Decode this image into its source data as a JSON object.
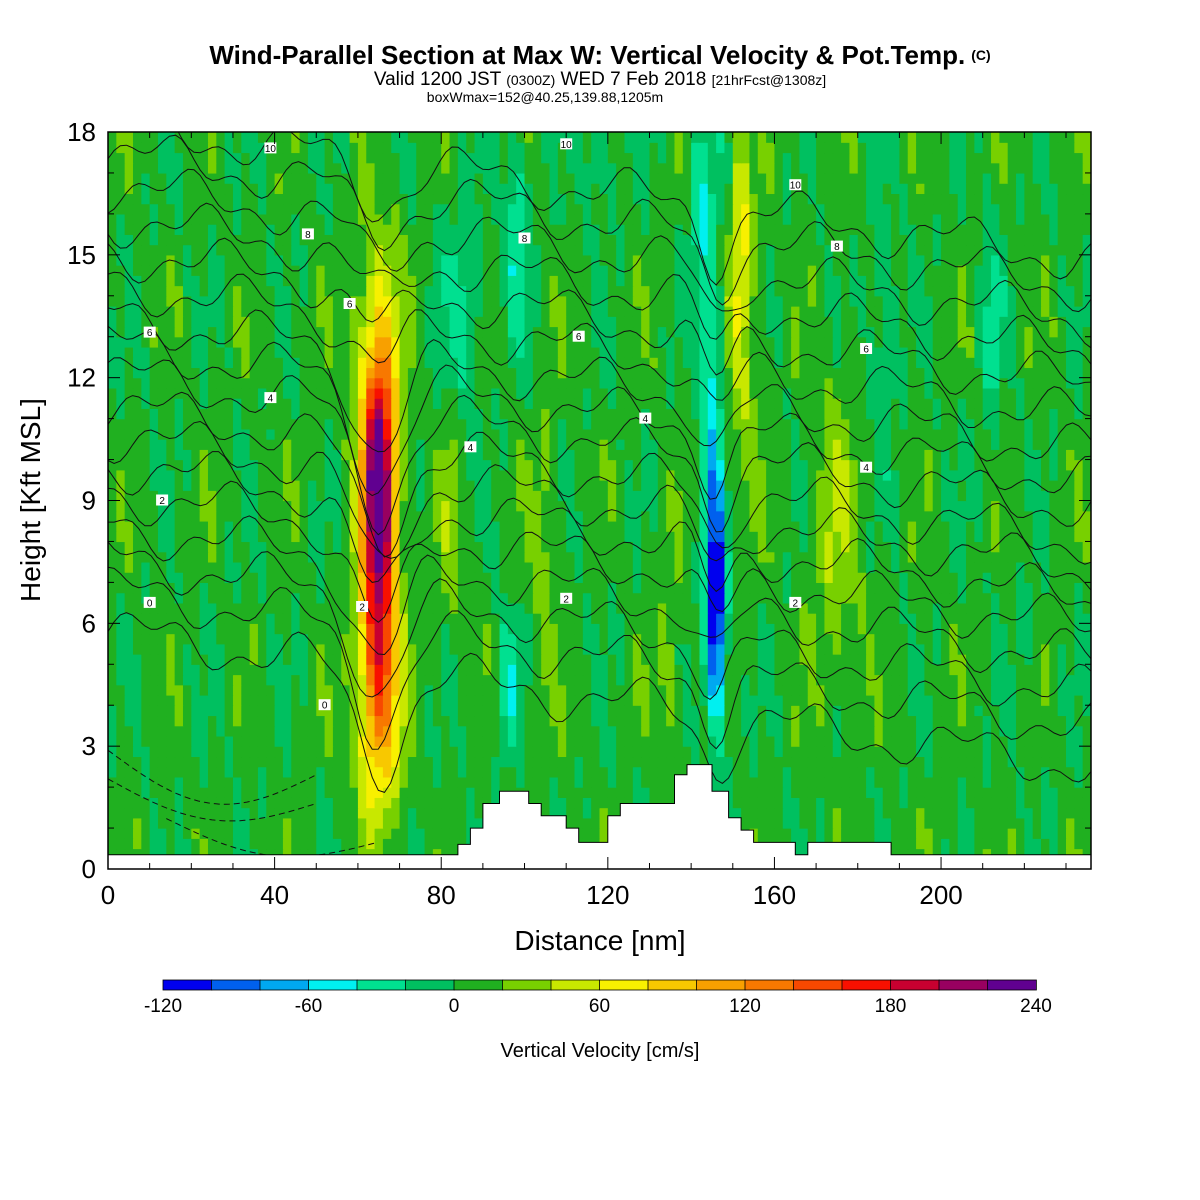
{
  "header": {
    "title": "Wind-Parallel Section at Max W: Vertical Velocity & Pot.Temp.",
    "title_mark": "(C)",
    "valid_prefix": "Valid 1200 JST",
    "valid_utc": "(0300Z)",
    "valid_date": "WED 7 Feb 2018",
    "valid_fcst": "[21hrFcst@1308z]",
    "box_info": "boxWmax=152@40.25,139.88,1205m"
  },
  "chart_data": {
    "type": "heatmap",
    "xlabel": "Distance [nm]",
    "ylabel": "Height [Kft MSL]",
    "xlim": [
      0,
      236
    ],
    "ylim": [
      0,
      18
    ],
    "x_ticks": [
      "0",
      "40",
      "80",
      "120",
      "160",
      "200"
    ],
    "y_ticks": [
      "0",
      "3",
      "6",
      "9",
      "12",
      "15",
      "18"
    ],
    "field": "Vertical Velocity [cm/s]",
    "colorbar": {
      "label": "Vertical Velocity [cm/s]",
      "tick_labels": [
        "-120",
        "-60",
        "0",
        "60",
        "120",
        "180",
        "240"
      ],
      "levels": [
        -120,
        -100,
        -80,
        -60,
        -40,
        -20,
        0,
        20,
        40,
        60,
        80,
        100,
        120,
        140,
        160,
        180,
        200,
        220,
        240
      ],
      "colors": [
        "#0000ee",
        "#0060ee",
        "#00a8f0",
        "#00f0f0",
        "#00e090",
        "#00c060",
        "#20b020",
        "#78d000",
        "#c8e800",
        "#f8f000",
        "#f8c800",
        "#f8a000",
        "#f87800",
        "#f84800",
        "#f81000",
        "#c80030",
        "#980060",
        "#600090"
      ]
    },
    "features": [
      {
        "kind": "updraft",
        "x": 65,
        "peak_z": 9.0,
        "peak_w": 240
      },
      {
        "kind": "updraft",
        "x": 65,
        "peak_z": 5.0,
        "peak_w": 170
      },
      {
        "kind": "downdraft",
        "x": 146,
        "peak_z": 6.0,
        "peak_w": -120
      },
      {
        "kind": "weak_updraft",
        "x": 152,
        "peak_z": 15.5,
        "peak_w": 50
      }
    ],
    "contour_field": "Potential temperature",
    "contour_labels": [
      {
        "value": "10",
        "x": 39,
        "z": 17.6
      },
      {
        "value": "10",
        "x": 110,
        "z": 17.7
      },
      {
        "value": "10",
        "x": 165,
        "z": 16.7
      },
      {
        "value": "8",
        "x": 48,
        "z": 15.5
      },
      {
        "value": "8",
        "x": 100,
        "z": 15.4
      },
      {
        "value": "8",
        "x": 175,
        "z": 15.2
      },
      {
        "value": "6",
        "x": 10,
        "z": 13.1
      },
      {
        "value": "6",
        "x": 58,
        "z": 13.8
      },
      {
        "value": "6",
        "x": 113,
        "z": 13.0
      },
      {
        "value": "6",
        "x": 182,
        "z": 12.7
      },
      {
        "value": "4",
        "x": 39,
        "z": 11.5
      },
      {
        "value": "4",
        "x": 87,
        "z": 10.3
      },
      {
        "value": "4",
        "x": 129,
        "z": 11.0
      },
      {
        "value": "4",
        "x": 182,
        "z": 9.8
      },
      {
        "value": "2",
        "x": 13,
        "z": 9.0
      },
      {
        "value": "2",
        "x": 61,
        "z": 6.4
      },
      {
        "value": "2",
        "x": 110,
        "z": 6.6
      },
      {
        "value": "2",
        "x": 165,
        "z": 6.5
      },
      {
        "value": "0",
        "x": 10,
        "z": 6.5
      },
      {
        "value": "0",
        "x": 52,
        "z": 4.0
      }
    ],
    "terrain": [
      [
        0,
        0.35
      ],
      [
        84,
        0.35
      ],
      [
        84,
        0.6
      ],
      [
        87,
        0.6
      ],
      [
        87,
        1.0
      ],
      [
        90,
        1.0
      ],
      [
        90,
        1.6
      ],
      [
        94,
        1.6
      ],
      [
        94,
        1.9
      ],
      [
        101,
        1.9
      ],
      [
        101,
        1.6
      ],
      [
        104,
        1.6
      ],
      [
        104,
        1.3
      ],
      [
        110,
        1.3
      ],
      [
        110,
        1.0
      ],
      [
        113,
        1.0
      ],
      [
        113,
        0.65
      ],
      [
        120,
        0.65
      ],
      [
        120,
        1.3
      ],
      [
        123,
        1.3
      ],
      [
        123,
        1.6
      ],
      [
        136,
        1.6
      ],
      [
        136,
        2.3
      ],
      [
        139,
        2.3
      ],
      [
        139,
        2.55
      ],
      [
        145,
        2.55
      ],
      [
        145,
        1.9
      ],
      [
        149,
        1.9
      ],
      [
        149,
        1.25
      ],
      [
        152,
        1.25
      ],
      [
        152,
        0.95
      ],
      [
        155,
        0.95
      ],
      [
        155,
        0.65
      ],
      [
        165,
        0.65
      ],
      [
        165,
        0.35
      ],
      [
        168,
        0.35
      ],
      [
        168,
        0.65
      ],
      [
        188,
        0.65
      ],
      [
        188,
        0.35
      ],
      [
        236,
        0.35
      ]
    ]
  }
}
